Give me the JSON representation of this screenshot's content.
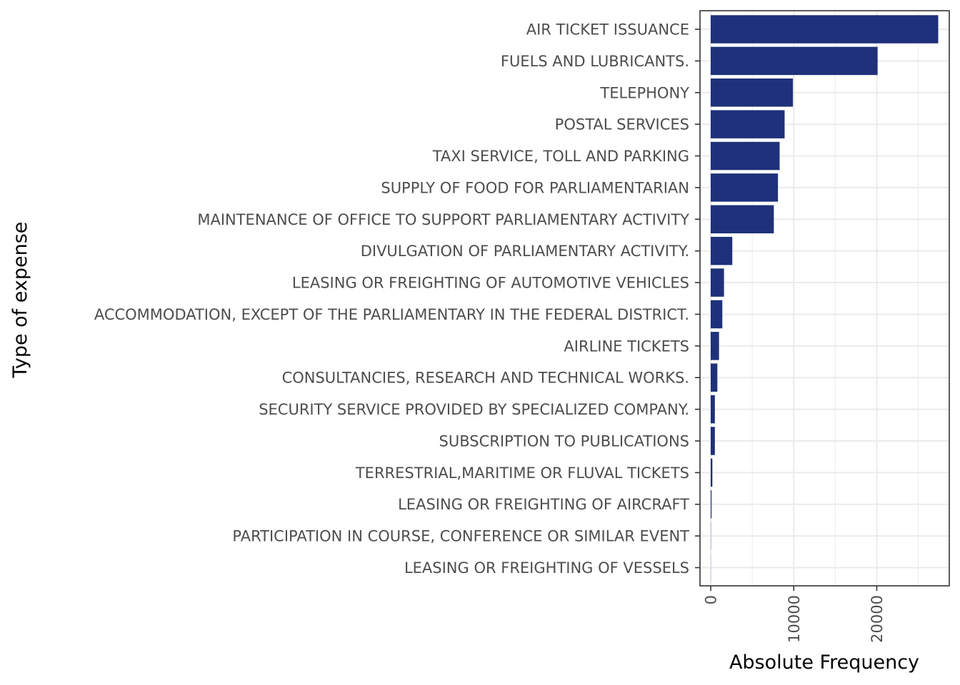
{
  "chart_data": {
    "type": "bar",
    "orientation": "horizontal",
    "xlabel": "Absolute Frequency",
    "ylabel": "Type of expense",
    "xlim": [
      -1200,
      28700
    ],
    "xticks": [
      0,
      10000,
      20000
    ],
    "xtick_labels": [
      "0",
      "10000",
      "20000"
    ],
    "grid": true,
    "legend": "none",
    "colors": {
      "bar": "#1f317a",
      "grid": "#ebebeb",
      "panel_border": "#333333"
    },
    "categories": [
      "AIR TICKET ISSUANCE",
      "FUELS AND LUBRICANTS.",
      "TELEPHONY",
      "POSTAL SERVICES",
      "TAXI SERVICE, TOLL AND PARKING",
      "SUPPLY OF FOOD FOR PARLIAMENTARIAN",
      "MAINTENANCE OF OFFICE TO SUPPORT PARLIAMENTARY ACTIVITY",
      "DIVULGATION OF PARLIAMENTARY ACTIVITY.",
      "LEASING OR FREIGHTING OF AUTOMOTIVE VEHICLES",
      "ACCOMMODATION, EXCEPT OF THE PARLIAMENTARY IN THE FEDERAL DISTRICT.",
      "AIRLINE TICKETS",
      "CONSULTANCIES, RESEARCH AND TECHNICAL WORKS.",
      "SECURITY SERVICE PROVIDED BY SPECIALIZED COMPANY.",
      "SUBSCRIPTION TO PUBLICATIONS",
      "TERRESTRIAL,MARITIME OR FLUVAL TICKETS",
      "LEASING OR FREIGHTING OF AIRCRAFT",
      "PARTICIPATION IN COURSE, CONFERENCE OR SIMILAR EVENT",
      "LEASING OR FREIGHTING OF VESSELS"
    ],
    "values": [
      27400,
      20100,
      9900,
      8900,
      8300,
      8100,
      7600,
      2600,
      1600,
      1400,
      1000,
      800,
      500,
      500,
      200,
      100,
      20,
      10
    ]
  }
}
